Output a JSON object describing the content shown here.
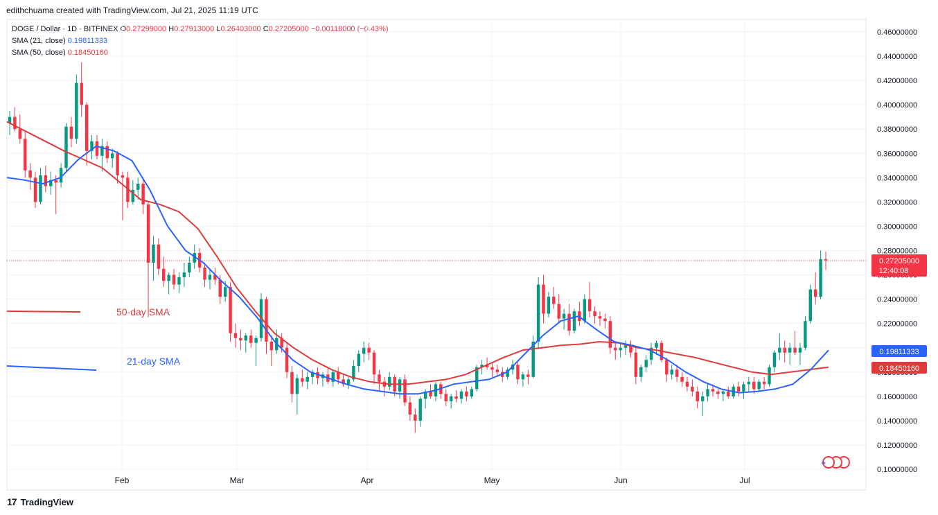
{
  "header": {
    "attribution": "edithchuama created with TradingView.com, Jul 21, 2025 11:19 UTC"
  },
  "legend": {
    "symbol": "DOGE / Dollar · 1D · BITFINEX",
    "o_label": "O",
    "o": "0.27299000",
    "h_label": "H",
    "h": "0.27913000",
    "l_label": "L",
    "l": "0.26403000",
    "c_label": "C",
    "c": "0.27205000",
    "chg": "−0.00118000 (−0.43%)",
    "sma21_label": "SMA (21, close)",
    "sma21_value": "0.19811333",
    "sma50_label": "SMA (50, close)",
    "sma50_value": "0.18450160"
  },
  "annotations": {
    "sma50": "50-day SMA",
    "sma21": "21-day SMA"
  },
  "price_tags": {
    "last": "0.27205000",
    "countdown": "12:40:08",
    "sma21": "0.19811333",
    "sma50": "0.18450160"
  },
  "footer": {
    "brand": "TradingView",
    "logo": "17"
  },
  "colors": {
    "up": "#089981",
    "down": "#f23645",
    "sma21": "#2962ff",
    "sma50": "#e03a3a",
    "grid": "#f0f3fa",
    "text": "#131722"
  },
  "chart_data": {
    "type": "candlestick",
    "yaxis_ticks": [
      "0.10000000",
      "0.12000000",
      "0.14000000",
      "0.16000000",
      "0.18000000",
      "0.20000000",
      "0.22000000",
      "0.24000000",
      "0.26000000",
      "0.28000000",
      "0.30000000",
      "0.32000000",
      "0.34000000",
      "0.36000000",
      "0.38000000",
      "0.40000000",
      "0.42000000",
      "0.44000000",
      "0.46000000"
    ],
    "ylim": [
      0.1,
      0.46
    ],
    "xaxis_ticks": [
      "Feb",
      "Mar",
      "Apr",
      "May",
      "Jun",
      "Jul"
    ],
    "candles_ohlc": [
      [
        0.385,
        0.395,
        0.375,
        0.39
      ],
      [
        0.39,
        0.398,
        0.378,
        0.38
      ],
      [
        0.38,
        0.392,
        0.368,
        0.372
      ],
      [
        0.372,
        0.378,
        0.34,
        0.346
      ],
      [
        0.346,
        0.352,
        0.33,
        0.34
      ],
      [
        0.34,
        0.345,
        0.315,
        0.32
      ],
      [
        0.32,
        0.348,
        0.318,
        0.342
      ],
      [
        0.342,
        0.35,
        0.328,
        0.333
      ],
      [
        0.333,
        0.345,
        0.326,
        0.338
      ],
      [
        0.338,
        0.342,
        0.31,
        0.336
      ],
      [
        0.336,
        0.352,
        0.332,
        0.348
      ],
      [
        0.348,
        0.385,
        0.345,
        0.382
      ],
      [
        0.382,
        0.39,
        0.365,
        0.372
      ],
      [
        0.372,
        0.425,
        0.368,
        0.418
      ],
      [
        0.418,
        0.435,
        0.39,
        0.4
      ],
      [
        0.4,
        0.402,
        0.35,
        0.362
      ],
      [
        0.362,
        0.375,
        0.355,
        0.37
      ],
      [
        0.37,
        0.375,
        0.355,
        0.358
      ],
      [
        0.358,
        0.372,
        0.345,
        0.366
      ],
      [
        0.366,
        0.37,
        0.352,
        0.356
      ],
      [
        0.356,
        0.364,
        0.348,
        0.36
      ],
      [
        0.36,
        0.362,
        0.335,
        0.342
      ],
      [
        0.342,
        0.345,
        0.305,
        0.34
      ],
      [
        0.34,
        0.345,
        0.315,
        0.32
      ],
      [
        0.32,
        0.338,
        0.318,
        0.33
      ],
      [
        0.33,
        0.34,
        0.322,
        0.335
      ],
      [
        0.335,
        0.34,
        0.31,
        0.318
      ],
      [
        0.318,
        0.32,
        0.225,
        0.27
      ],
      [
        0.27,
        0.292,
        0.255,
        0.285
      ],
      [
        0.285,
        0.29,
        0.26,
        0.265
      ],
      [
        0.265,
        0.275,
        0.25,
        0.255
      ],
      [
        0.255,
        0.262,
        0.244,
        0.26
      ],
      [
        0.26,
        0.265,
        0.248,
        0.252
      ],
      [
        0.252,
        0.262,
        0.245,
        0.258
      ],
      [
        0.258,
        0.27,
        0.25,
        0.262
      ],
      [
        0.262,
        0.275,
        0.258,
        0.27
      ],
      [
        0.27,
        0.285,
        0.265,
        0.278
      ],
      [
        0.278,
        0.282,
        0.262,
        0.266
      ],
      [
        0.266,
        0.27,
        0.25,
        0.256
      ],
      [
        0.256,
        0.264,
        0.248,
        0.26
      ],
      [
        0.26,
        0.266,
        0.252,
        0.256
      ],
      [
        0.256,
        0.26,
        0.236,
        0.242
      ],
      [
        0.242,
        0.255,
        0.238,
        0.25
      ],
      [
        0.25,
        0.254,
        0.205,
        0.212
      ],
      [
        0.212,
        0.22,
        0.2,
        0.208
      ],
      [
        0.208,
        0.215,
        0.198,
        0.206
      ],
      [
        0.206,
        0.212,
        0.196,
        0.21
      ],
      [
        0.21,
        0.215,
        0.2,
        0.204
      ],
      [
        0.204,
        0.21,
        0.185,
        0.208
      ],
      [
        0.208,
        0.245,
        0.205,
        0.24
      ],
      [
        0.24,
        0.242,
        0.195,
        0.205
      ],
      [
        0.205,
        0.21,
        0.185,
        0.198
      ],
      [
        0.198,
        0.215,
        0.195,
        0.208
      ],
      [
        0.208,
        0.212,
        0.196,
        0.2
      ],
      [
        0.2,
        0.205,
        0.175,
        0.18
      ],
      [
        0.18,
        0.185,
        0.155,
        0.162
      ],
      [
        0.162,
        0.178,
        0.145,
        0.175
      ],
      [
        0.175,
        0.182,
        0.168,
        0.172
      ],
      [
        0.172,
        0.18,
        0.166,
        0.176
      ],
      [
        0.176,
        0.182,
        0.17,
        0.18
      ],
      [
        0.18,
        0.184,
        0.17,
        0.175
      ],
      [
        0.175,
        0.18,
        0.168,
        0.178
      ],
      [
        0.178,
        0.183,
        0.17,
        0.172
      ],
      [
        0.172,
        0.182,
        0.168,
        0.18
      ],
      [
        0.18,
        0.184,
        0.17,
        0.174
      ],
      [
        0.174,
        0.178,
        0.168,
        0.17
      ],
      [
        0.17,
        0.176,
        0.166,
        0.174
      ],
      [
        0.174,
        0.19,
        0.172,
        0.185
      ],
      [
        0.185,
        0.198,
        0.18,
        0.195
      ],
      [
        0.195,
        0.205,
        0.188,
        0.2
      ],
      [
        0.2,
        0.204,
        0.19,
        0.196
      ],
      [
        0.196,
        0.198,
        0.17,
        0.178
      ],
      [
        0.178,
        0.182,
        0.165,
        0.172
      ],
      [
        0.172,
        0.176,
        0.16,
        0.168
      ],
      [
        0.168,
        0.18,
        0.165,
        0.176
      ],
      [
        0.176,
        0.178,
        0.16,
        0.164
      ],
      [
        0.164,
        0.176,
        0.158,
        0.174
      ],
      [
        0.174,
        0.178,
        0.152,
        0.155
      ],
      [
        0.155,
        0.16,
        0.14,
        0.145
      ],
      [
        0.145,
        0.15,
        0.13,
        0.14
      ],
      [
        0.14,
        0.16,
        0.135,
        0.158
      ],
      [
        0.158,
        0.166,
        0.15,
        0.164
      ],
      [
        0.164,
        0.17,
        0.158,
        0.16
      ],
      [
        0.16,
        0.172,
        0.156,
        0.17
      ],
      [
        0.17,
        0.172,
        0.158,
        0.162
      ],
      [
        0.162,
        0.166,
        0.152,
        0.156
      ],
      [
        0.156,
        0.162,
        0.15,
        0.16
      ],
      [
        0.16,
        0.165,
        0.155,
        0.158
      ],
      [
        0.158,
        0.166,
        0.154,
        0.164
      ],
      [
        0.164,
        0.168,
        0.156,
        0.16
      ],
      [
        0.16,
        0.168,
        0.158,
        0.166
      ],
      [
        0.166,
        0.186,
        0.164,
        0.184
      ],
      [
        0.184,
        0.19,
        0.178,
        0.186
      ],
      [
        0.186,
        0.192,
        0.182,
        0.184
      ],
      [
        0.184,
        0.188,
        0.176,
        0.182
      ],
      [
        0.182,
        0.186,
        0.176,
        0.18
      ],
      [
        0.18,
        0.184,
        0.172,
        0.176
      ],
      [
        0.176,
        0.184,
        0.174,
        0.182
      ],
      [
        0.182,
        0.19,
        0.178,
        0.186
      ],
      [
        0.186,
        0.188,
        0.17,
        0.174
      ],
      [
        0.174,
        0.18,
        0.168,
        0.178
      ],
      [
        0.178,
        0.182,
        0.17,
        0.176
      ],
      [
        0.176,
        0.21,
        0.175,
        0.205
      ],
      [
        0.205,
        0.258,
        0.2,
        0.252
      ],
      [
        0.252,
        0.26,
        0.22,
        0.228
      ],
      [
        0.228,
        0.246,
        0.225,
        0.242
      ],
      [
        0.242,
        0.25,
        0.232,
        0.236
      ],
      [
        0.236,
        0.244,
        0.22,
        0.224
      ],
      [
        0.224,
        0.232,
        0.215,
        0.228
      ],
      [
        0.228,
        0.236,
        0.21,
        0.214
      ],
      [
        0.214,
        0.232,
        0.212,
        0.23
      ],
      [
        0.23,
        0.238,
        0.218,
        0.222
      ],
      [
        0.222,
        0.244,
        0.22,
        0.24
      ],
      [
        0.24,
        0.254,
        0.225,
        0.23
      ],
      [
        0.23,
        0.234,
        0.22,
        0.226
      ],
      [
        0.226,
        0.23,
        0.218,
        0.224
      ],
      [
        0.224,
        0.228,
        0.216,
        0.222
      ],
      [
        0.222,
        0.226,
        0.195,
        0.2
      ],
      [
        0.2,
        0.204,
        0.19,
        0.198
      ],
      [
        0.198,
        0.204,
        0.192,
        0.2
      ],
      [
        0.2,
        0.206,
        0.194,
        0.202
      ],
      [
        0.202,
        0.206,
        0.192,
        0.196
      ],
      [
        0.196,
        0.2,
        0.17,
        0.176
      ],
      [
        0.176,
        0.186,
        0.172,
        0.184
      ],
      [
        0.184,
        0.194,
        0.18,
        0.19
      ],
      [
        0.19,
        0.204,
        0.186,
        0.2
      ],
      [
        0.2,
        0.206,
        0.194,
        0.204
      ],
      [
        0.204,
        0.206,
        0.188,
        0.19
      ],
      [
        0.19,
        0.192,
        0.172,
        0.178
      ],
      [
        0.178,
        0.186,
        0.174,
        0.182
      ],
      [
        0.182,
        0.186,
        0.172,
        0.176
      ],
      [
        0.176,
        0.18,
        0.168,
        0.172
      ],
      [
        0.172,
        0.176,
        0.164,
        0.168
      ],
      [
        0.168,
        0.174,
        0.16,
        0.164
      ],
      [
        0.164,
        0.168,
        0.15,
        0.156
      ],
      [
        0.156,
        0.164,
        0.144,
        0.16
      ],
      [
        0.16,
        0.17,
        0.156,
        0.166
      ],
      [
        0.166,
        0.17,
        0.16,
        0.164
      ],
      [
        0.164,
        0.168,
        0.158,
        0.162
      ],
      [
        0.162,
        0.166,
        0.156,
        0.164
      ],
      [
        0.164,
        0.168,
        0.158,
        0.16
      ],
      [
        0.16,
        0.17,
        0.158,
        0.168
      ],
      [
        0.168,
        0.172,
        0.16,
        0.164
      ],
      [
        0.164,
        0.172,
        0.158,
        0.17
      ],
      [
        0.17,
        0.176,
        0.164,
        0.172
      ],
      [
        0.172,
        0.176,
        0.162,
        0.166
      ],
      [
        0.166,
        0.174,
        0.164,
        0.172
      ],
      [
        0.172,
        0.176,
        0.166,
        0.17
      ],
      [
        0.17,
        0.186,
        0.168,
        0.184
      ],
      [
        0.184,
        0.198,
        0.18,
        0.196
      ],
      [
        0.196,
        0.212,
        0.19,
        0.2
      ],
      [
        0.2,
        0.206,
        0.188,
        0.196
      ],
      [
        0.196,
        0.204,
        0.186,
        0.2
      ],
      [
        0.2,
        0.214,
        0.194,
        0.196
      ],
      [
        0.196,
        0.204,
        0.186,
        0.2
      ],
      [
        0.2,
        0.226,
        0.198,
        0.222
      ],
      [
        0.222,
        0.252,
        0.22,
        0.248
      ],
      [
        0.248,
        0.262,
        0.236,
        0.242
      ],
      [
        0.242,
        0.28,
        0.24,
        0.273
      ],
      [
        0.273,
        0.279,
        0.264,
        0.272
      ]
    ],
    "sma21": [
      0.34,
      0.338,
      0.335,
      0.34,
      0.355,
      0.366,
      0.362,
      0.354,
      0.33,
      0.3,
      0.28,
      0.27,
      0.255,
      0.242,
      0.225,
      0.205,
      0.19,
      0.18,
      0.175,
      0.17,
      0.166,
      0.164,
      0.162,
      0.162,
      0.165,
      0.17,
      0.172,
      0.174,
      0.18,
      0.195,
      0.21,
      0.222,
      0.226,
      0.215,
      0.205,
      0.202,
      0.198,
      0.19,
      0.18,
      0.172,
      0.166,
      0.163,
      0.164,
      0.166,
      0.17,
      0.182,
      0.198
    ],
    "sma50": [
      0.386,
      0.378,
      0.37,
      0.362,
      0.355,
      0.348,
      0.335,
      0.322,
      0.318,
      0.312,
      0.298,
      0.275,
      0.25,
      0.23,
      0.212,
      0.2,
      0.19,
      0.182,
      0.176,
      0.172,
      0.17,
      0.17,
      0.172,
      0.174,
      0.178,
      0.185,
      0.192,
      0.198,
      0.2,
      0.202,
      0.203,
      0.205,
      0.204,
      0.2,
      0.198,
      0.195,
      0.192,
      0.188,
      0.184,
      0.18,
      0.178,
      0.18,
      0.182,
      0.184
    ]
  }
}
